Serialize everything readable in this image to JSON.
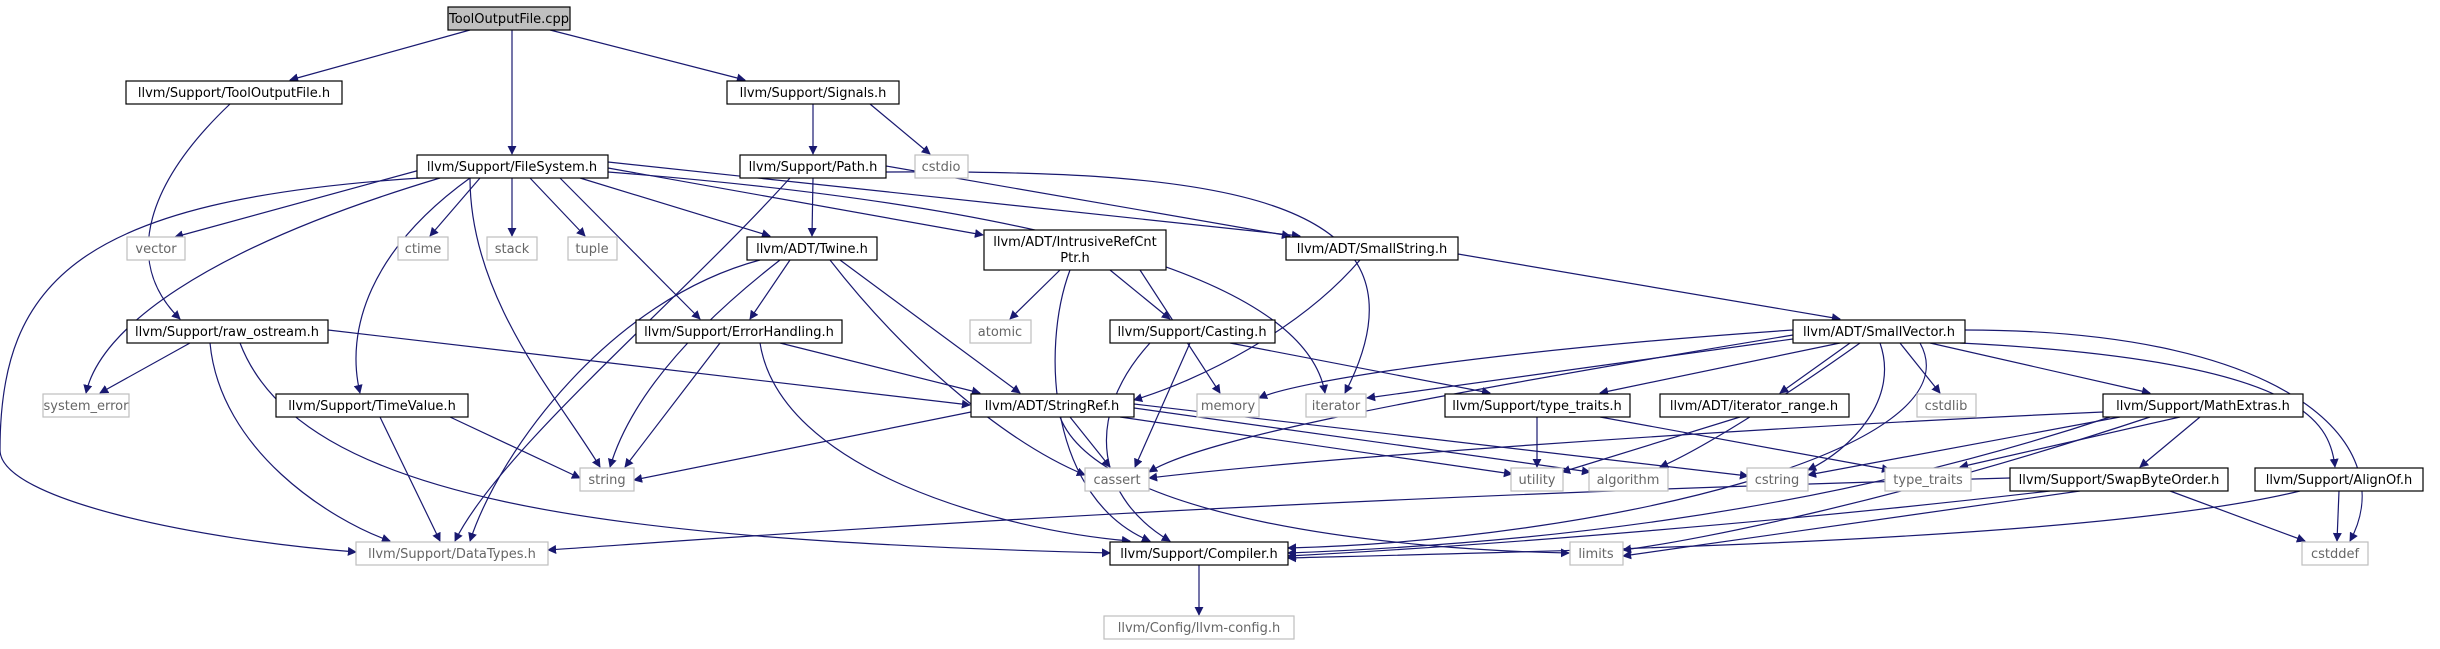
{
  "graph": {
    "title": "ToolOutputFile.cpp",
    "colors": {
      "edge": "#191970",
      "root_fill": "#bfbfbf",
      "node_border": "#000000",
      "system_border": "#bfbfbf",
      "system_text": "#666666"
    },
    "nodes": {
      "root": "ToolOutputFile.cpp",
      "tooloutputfile_h": "llvm/Support/ToolOutputFile.h",
      "signals_h": "llvm/Support/Signals.h",
      "filesystem_h": "llvm/Support/FileSystem.h",
      "path_h": "llvm/Support/Path.h",
      "cstdio": "cstdio",
      "vector": "vector",
      "ctime": "ctime",
      "stack": "stack",
      "tuple": "tuple",
      "twine_h": "llvm/ADT/Twine.h",
      "intrusive_l1": "llvm/ADT/IntrusiveRefCnt",
      "intrusive_l2": "Ptr.h",
      "smallstring_h": "llvm/ADT/SmallString.h",
      "raw_ostream_h": "llvm/Support/raw_ostream.h",
      "errorhandling_h": "llvm/Support/ErrorHandling.h",
      "atomic": "atomic",
      "casting_h": "llvm/Support/Casting.h",
      "smallvector_h": "llvm/ADT/SmallVector.h",
      "system_error": "system_error",
      "timevalue_h": "llvm/Support/TimeValue.h",
      "stringref_h": "llvm/ADT/StringRef.h",
      "memory": "memory",
      "iterator": "iterator",
      "type_traits_h": "llvm/Support/type_traits.h",
      "iterator_range_h": "llvm/ADT/iterator_range.h",
      "cstdlib": "cstdlib",
      "mathextras_h": "llvm/Support/MathExtras.h",
      "string": "string",
      "cassert": "cassert",
      "utility": "utility",
      "algorithm": "algorithm",
      "cstring": "cstring",
      "type_traits": "type_traits",
      "swapbyteorder_h": "llvm/Support/SwapByteOrder.h",
      "alignof_h": "llvm/Support/AlignOf.h",
      "datatypes_h": "llvm/Support/DataTypes.h",
      "compiler_h": "llvm/Support/Compiler.h",
      "limits": "limits",
      "cstddef": "cstddef",
      "llvm_config_h": "llvm/Config/llvm-config.h"
    }
  }
}
